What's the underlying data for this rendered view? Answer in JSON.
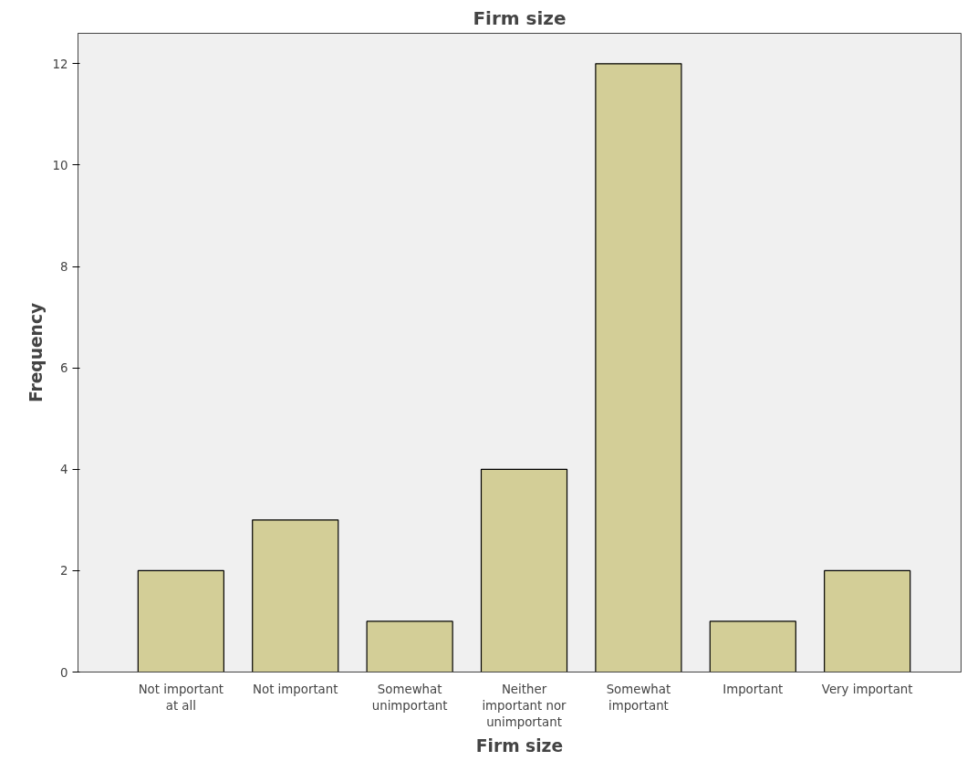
{
  "chart_data": {
    "type": "bar",
    "title": "Firm size",
    "xlabel": "Firm size",
    "ylabel": "Frequency",
    "categories": [
      "Not important at all",
      "Not important",
      "Somewhat unimportant",
      "Neither important nor unimportant",
      "Somewhat important",
      "Important",
      "Very important"
    ],
    "values": [
      2,
      3,
      1,
      4,
      12,
      1,
      2
    ],
    "color": "#d3ce97",
    "ylim": [
      0,
      12.6
    ],
    "yticks": [
      0,
      2,
      4,
      6,
      8,
      10,
      12
    ],
    "grid": false
  }
}
